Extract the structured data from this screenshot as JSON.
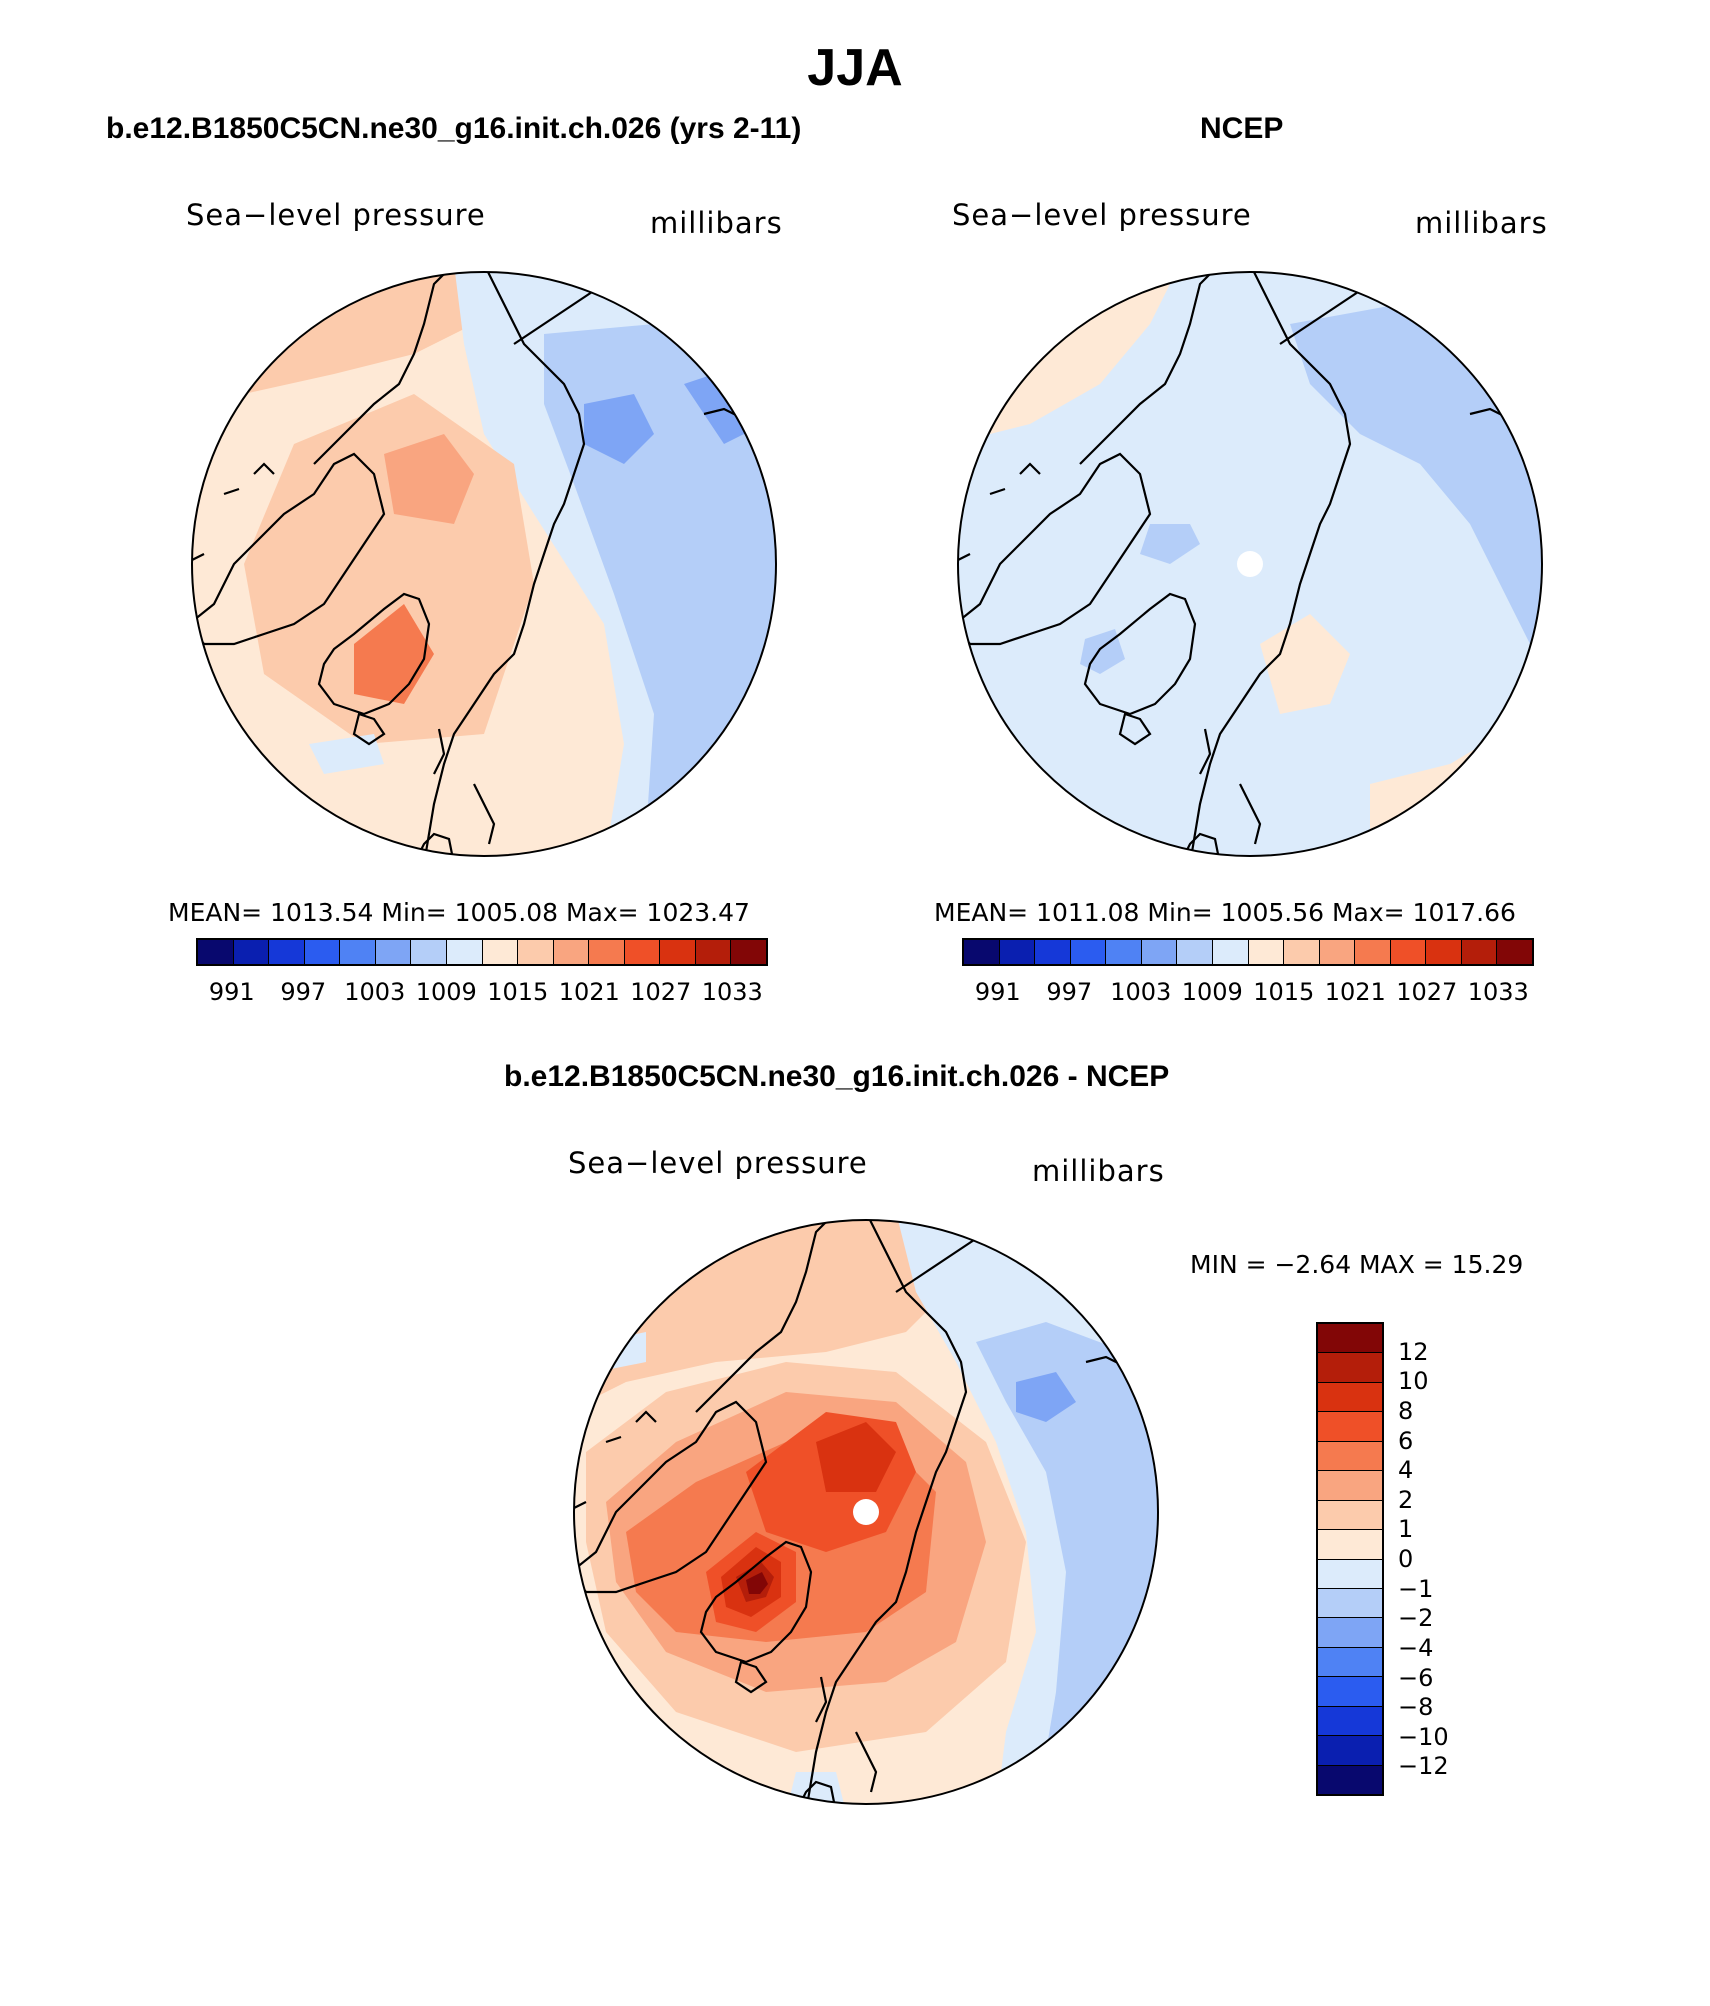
{
  "title": "JJA",
  "panels": {
    "model": {
      "title": "b.e12.B1850C5CN.ne30_g16.init.ch.026 (yrs 2-11)",
      "left_label": "Sea−level pressure",
      "right_label": "millibars",
      "stats": "MEAN= 1013.54   Min= 1005.08   Max= 1023.47"
    },
    "obs": {
      "title": "NCEP",
      "left_label": "Sea−level pressure",
      "right_label": "millibars",
      "stats": "MEAN= 1011.08   Min= 1005.56   Max= 1017.66"
    },
    "diff": {
      "title": "b.e12.B1850C5CN.ne30_g16.init.ch.026 - NCEP",
      "left_label": "Sea−level pressure",
      "right_label": "millibars",
      "stats": "MIN =   −2.64  MAX =    15.29"
    }
  },
  "abs_colorbar": {
    "colors": [
      "#08086e",
      "#0a1fb0",
      "#1538d8",
      "#2b5cf0",
      "#4f82f4",
      "#7ea5f5",
      "#b4cef8",
      "#dcebfb",
      "#fee9d6",
      "#fccbac",
      "#f9a580",
      "#f57a4f",
      "#ef5028",
      "#d93210",
      "#b41e0a",
      "#820606"
    ],
    "ticks": [
      "991",
      "997",
      "1003",
      "1009",
      "1015",
      "1021",
      "1027",
      "1033"
    ]
  },
  "diff_colorbar": {
    "colors": [
      "#820606",
      "#b41e0a",
      "#d93210",
      "#ef5028",
      "#f57a4f",
      "#f9a580",
      "#fccbac",
      "#fee9d6",
      "#dcebfb",
      "#b4cef8",
      "#7ea5f5",
      "#4f82f4",
      "#2b5cf0",
      "#1538d8",
      "#0a1fb0",
      "#08086e"
    ],
    "ticks": [
      "12",
      "10",
      "8",
      "6",
      "4",
      "2",
      "1",
      "0",
      "−1",
      "−2",
      "−4",
      "−6",
      "−8",
      "−10",
      "−12"
    ]
  }
}
